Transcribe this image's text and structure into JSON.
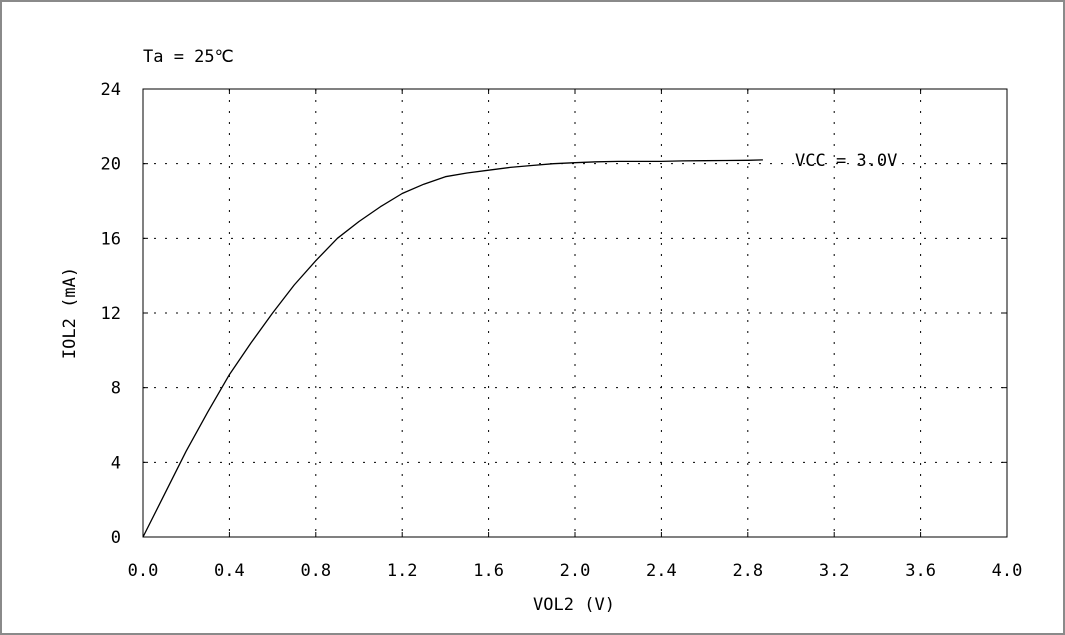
{
  "chart_data": {
    "type": "line",
    "annotation": "Ta = 25℃",
    "xlabel": "VOL2 (V)",
    "ylabel": "IOL2 (mA)",
    "xlim": [
      0,
      4.0
    ],
    "ylim": [
      0,
      24
    ],
    "x_ticks": [
      "0.0",
      "0.4",
      "0.8",
      "1.2",
      "1.6",
      "2.0",
      "2.4",
      "2.8",
      "3.2",
      "3.6",
      "4.0"
    ],
    "y_ticks": [
      "0",
      "4",
      "8",
      "12",
      "16",
      "20",
      "24"
    ],
    "grid": true,
    "series": [
      {
        "name": "VCC = 3.0V",
        "x": [
          0.0,
          0.1,
          0.2,
          0.3,
          0.4,
          0.5,
          0.6,
          0.7,
          0.8,
          0.9,
          1.0,
          1.1,
          1.2,
          1.3,
          1.4,
          1.5,
          1.6,
          1.7,
          1.8,
          1.9,
          2.0,
          2.1,
          2.2,
          2.3,
          2.4,
          2.5,
          2.6,
          2.7,
          2.8,
          2.87
        ],
        "y": [
          0.0,
          2.3,
          4.6,
          6.7,
          8.7,
          10.4,
          12.0,
          13.5,
          14.8,
          16.0,
          16.9,
          17.7,
          18.4,
          18.9,
          19.3,
          19.5,
          19.65,
          19.8,
          19.9,
          20.0,
          20.05,
          20.1,
          20.12,
          20.12,
          20.12,
          20.15,
          20.16,
          20.17,
          20.18,
          20.2
        ]
      }
    ]
  }
}
